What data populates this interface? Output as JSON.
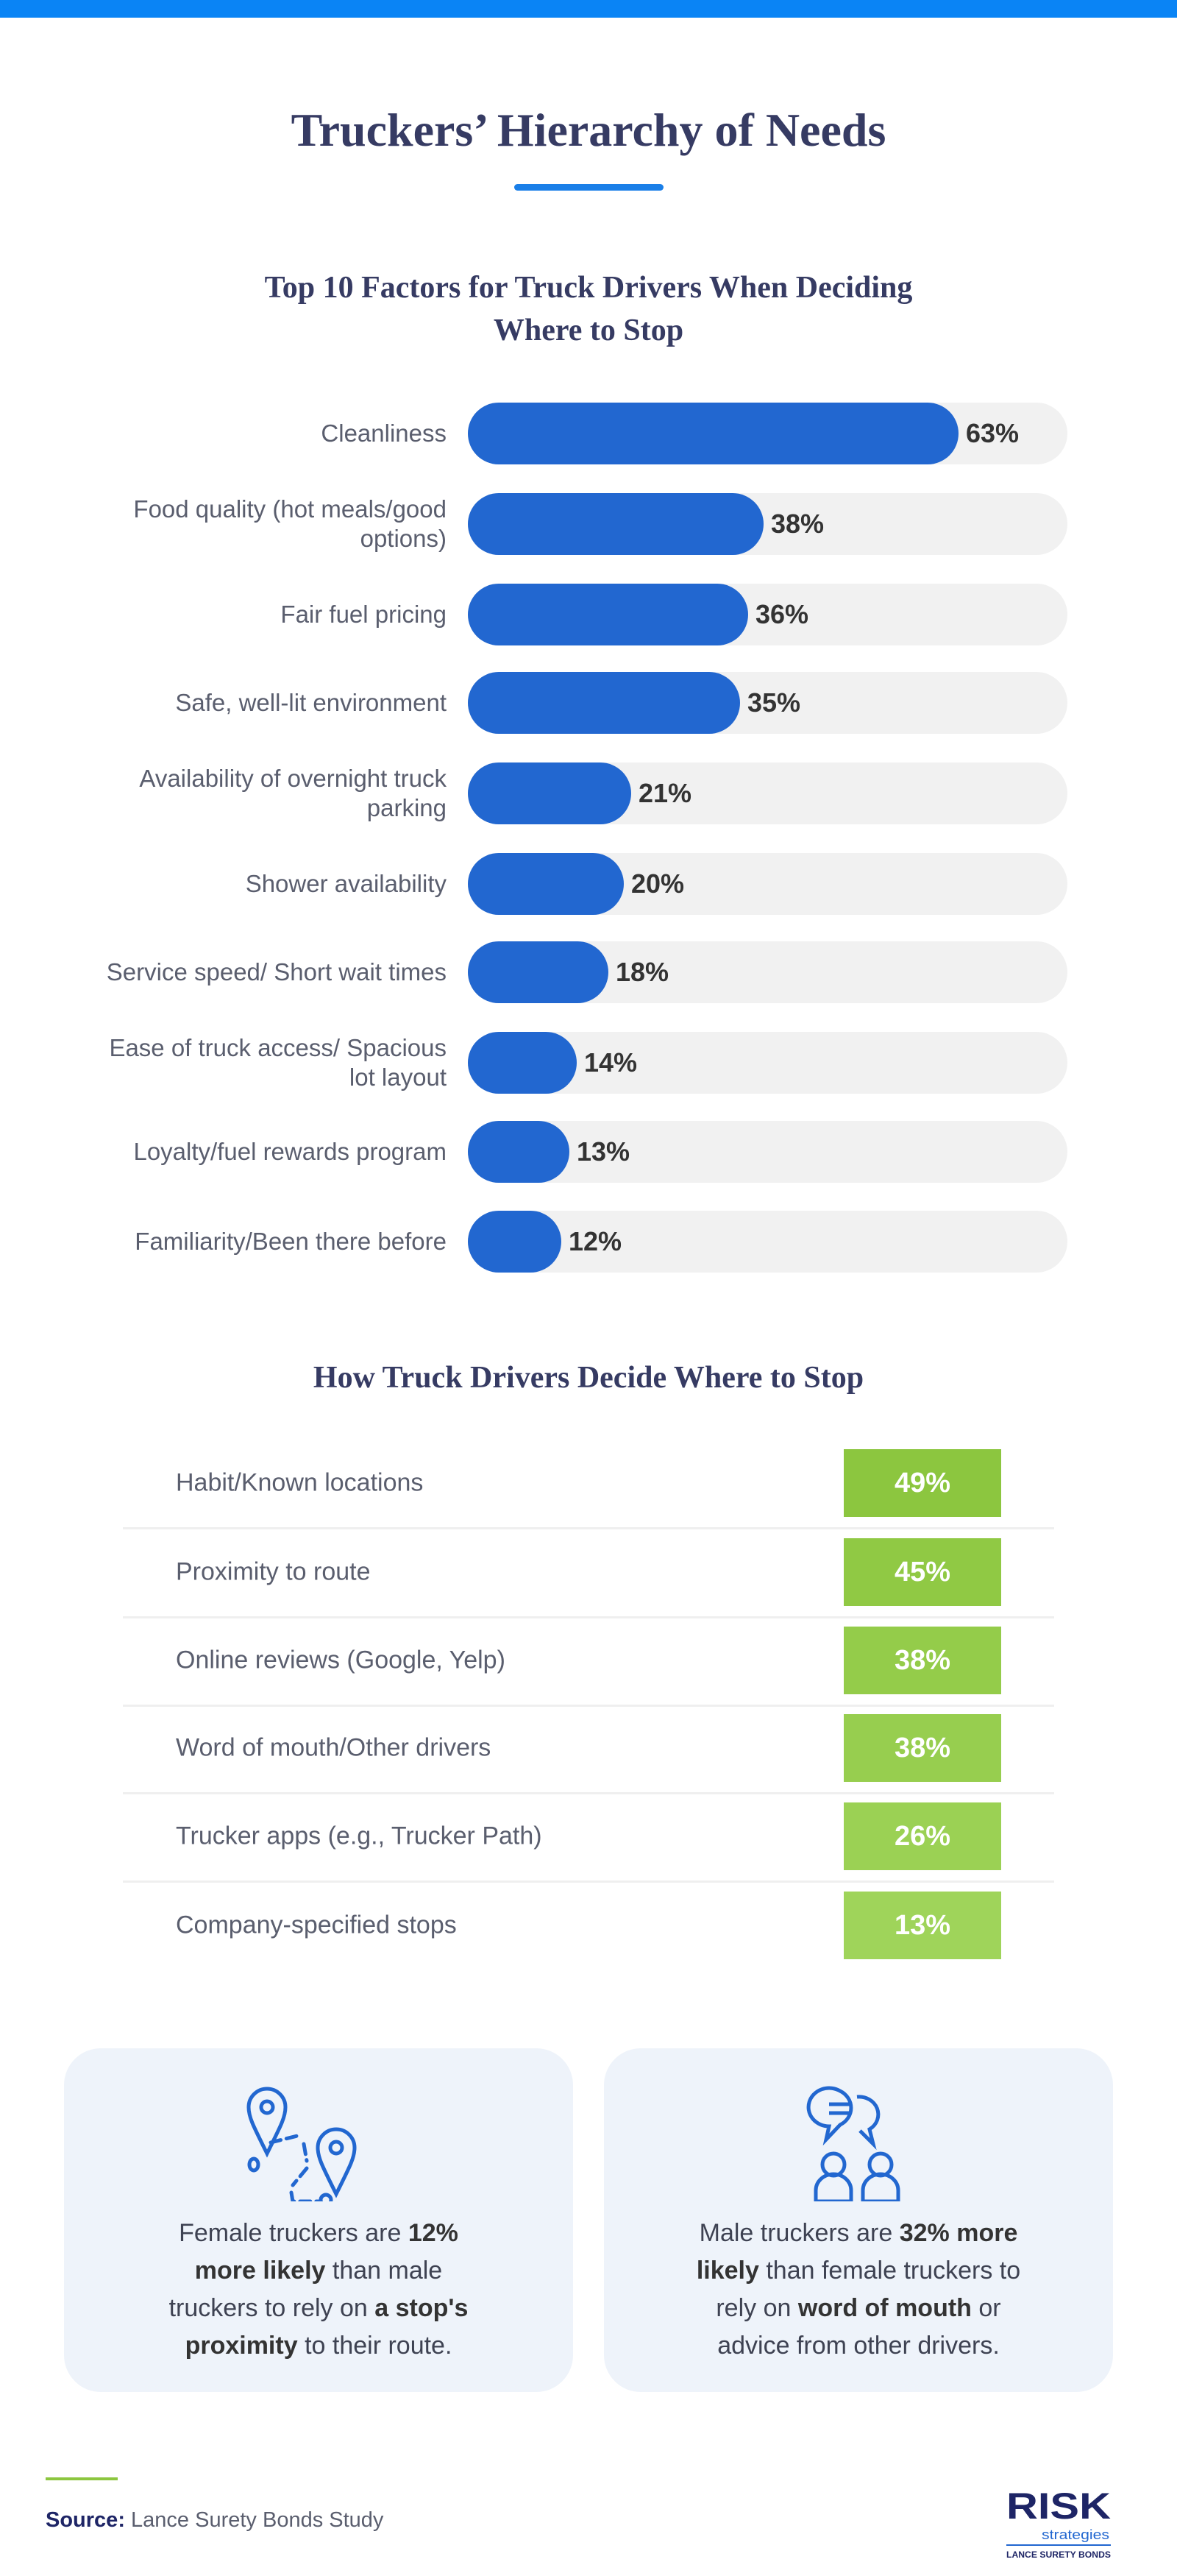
{
  "header": {
    "title": "Truckers’ Hierarchy of Needs"
  },
  "colors": {
    "accent": "#0a84f5",
    "bar": "#2267d0",
    "track": "#f1f1f1",
    "green": "#8cc63f",
    "heading": "#363b63",
    "card_bg": "#eef3fa"
  },
  "chart_data": {
    "type": "bar",
    "orientation": "horizontal",
    "title": "Top 10 Factors for Truck Drivers When Deciding Where to Stop",
    "categories": [
      "Cleanliness",
      "Food quality (hot meals/good options)",
      "Fair fuel pricing",
      "Safe, well-lit environment",
      "Availability of overnight truck parking",
      "Shower availability",
      "Service speed/ Short wait times",
      "Ease of truck access/ Spacious lot layout",
      "Loyalty/fuel rewards program",
      "Familiarity/Been there before"
    ],
    "values": [
      63,
      38,
      36,
      35,
      21,
      20,
      18,
      14,
      13,
      12
    ],
    "value_labels": [
      "63%",
      "38%",
      "36%",
      "35%",
      "21%",
      "20%",
      "18%",
      "14%",
      "13%",
      "12%"
    ],
    "unit": "%"
  },
  "table": {
    "title": "How Truck Drivers Decide Where to Stop",
    "rows": [
      {
        "label": "Habit/Known locations",
        "value": "49%",
        "color": "#8cc63f"
      },
      {
        "label": "Proximity to route",
        "value": "45%",
        "color": "#90c944"
      },
      {
        "label": "Online reviews (Google, Yelp)",
        "value": "38%",
        "color": "#94cc4a"
      },
      {
        "label": "Word of mouth/Other drivers",
        "value": "38%",
        "color": "#97ce4f"
      },
      {
        "label": "Trucker apps (e.g., Trucker Path)",
        "value": "26%",
        "color": "#9bd154"
      },
      {
        "label": "Company-specified stops",
        "value": "13%",
        "color": "#9fd45a"
      }
    ]
  },
  "cards": [
    {
      "icon": "map-route-icon",
      "parts": [
        [
          "Female truckers are ",
          false
        ],
        [
          "12% more likely",
          true
        ],
        [
          " than male truckers to rely on ",
          false
        ],
        [
          "a stop's proximity",
          true
        ],
        [
          " to their route.",
          false
        ]
      ]
    },
    {
      "icon": "conversation-icon",
      "parts": [
        [
          "Male truckers are ",
          false
        ],
        [
          "32% more likely",
          true
        ],
        [
          " than female truckers to rely on ",
          false
        ],
        [
          "word of mouth",
          true
        ],
        [
          " or advice from other drivers.",
          false
        ]
      ]
    }
  ],
  "footer": {
    "source_label": "Source:",
    "source_text": " Lance Surety Bonds Study",
    "logo_text": "RISK strategies LANCE SURETY BONDS"
  }
}
